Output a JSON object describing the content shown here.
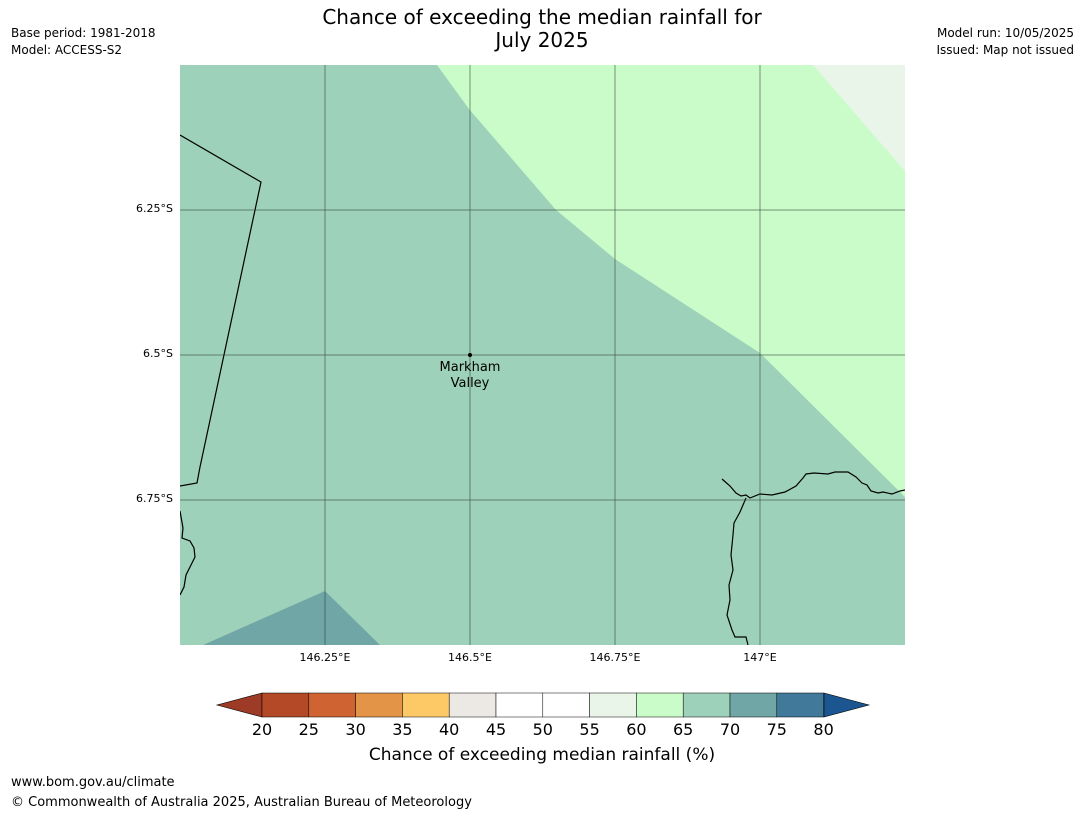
{
  "header": {
    "title_line1": "Chance of exceeding the median rainfall for",
    "title_line2": "July 2025",
    "base_period": "Base period: 1981-2018",
    "model": "Model: ACCESS-S2",
    "model_run": "Model run: 10/05/2025",
    "issued": "Issued: Map not issued"
  },
  "map": {
    "latitude_labels": [
      "6.25°S",
      "6.5°S",
      "6.75°S"
    ],
    "longitude_labels": [
      "146.25°E",
      "146.5°E",
      "146.75°E",
      "147°E"
    ],
    "place": {
      "name_line1": "Markham",
      "name_line2": "Valley"
    },
    "region_colors": {
      "p55_60": "#eaf5ea",
      "p60_65": "#c9fcc9",
      "p65_70": "#9ed1b9",
      "p70_75": "#71a6a6"
    }
  },
  "colorbar": {
    "title": "Chance of exceeding median rainfall (%)",
    "ticks": [
      "20",
      "25",
      "30",
      "35",
      "40",
      "45",
      "50",
      "55",
      "60",
      "65",
      "70",
      "75",
      "80"
    ],
    "under_color": "#9e3b26",
    "over_color": "#1c5690",
    "colors": [
      "#b34927",
      "#cf6331",
      "#e39446",
      "#fdc966",
      "#ece9e4",
      "#ffffff",
      "#ffffff",
      "#eaf5ea",
      "#c9fcc9",
      "#9ed1b9",
      "#71a6a6",
      "#41799b"
    ]
  },
  "footer": {
    "website": "www.bom.gov.au/climate",
    "copyright": "© Commonwealth of Australia 2025, Australian Bureau of Meteorology"
  }
}
